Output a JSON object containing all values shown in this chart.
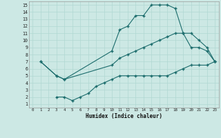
{
  "xlabel": "Humidex (Indice chaleur)",
  "xlim": [
    -0.5,
    23.5
  ],
  "ylim": [
    0.5,
    15.5
  ],
  "xticks": [
    0,
    1,
    2,
    3,
    4,
    5,
    6,
    7,
    8,
    9,
    10,
    11,
    12,
    13,
    14,
    15,
    16,
    17,
    18,
    19,
    20,
    21,
    22,
    23
  ],
  "yticks": [
    1,
    2,
    3,
    4,
    5,
    6,
    7,
    8,
    9,
    10,
    11,
    12,
    13,
    14,
    15
  ],
  "background_color": "#cce8e4",
  "grid_color": "#b0d8d2",
  "line_color": "#1a6b6b",
  "line1_x": [
    1,
    3,
    4,
    10,
    11,
    12,
    13,
    14,
    15,
    16,
    17,
    18,
    19,
    20,
    21,
    22,
    23
  ],
  "line1_y": [
    7,
    5,
    4.5,
    8.5,
    11.5,
    12,
    13.5,
    13.5,
    15,
    15,
    15,
    14.5,
    11,
    9,
    9,
    8.5,
    7
  ],
  "line2_x": [
    1,
    3,
    4,
    10,
    11,
    12,
    13,
    14,
    15,
    16,
    17,
    18,
    19,
    20,
    21,
    22,
    23
  ],
  "line2_y": [
    7,
    5,
    4.5,
    6.5,
    7.5,
    8,
    8.5,
    9,
    9.5,
    10,
    10.5,
    11,
    11,
    11,
    10,
    9,
    7
  ],
  "line3_x": [
    3,
    4,
    5,
    6,
    7,
    8,
    9,
    10,
    11,
    12,
    13,
    14,
    15,
    16,
    17,
    18,
    19,
    20,
    21,
    22,
    23
  ],
  "line3_y": [
    2,
    2,
    1.5,
    2,
    2.5,
    3.5,
    4,
    4.5,
    5,
    5,
    5,
    5,
    5,
    5,
    5,
    5.5,
    6,
    6.5,
    6.5,
    6.5,
    7
  ]
}
